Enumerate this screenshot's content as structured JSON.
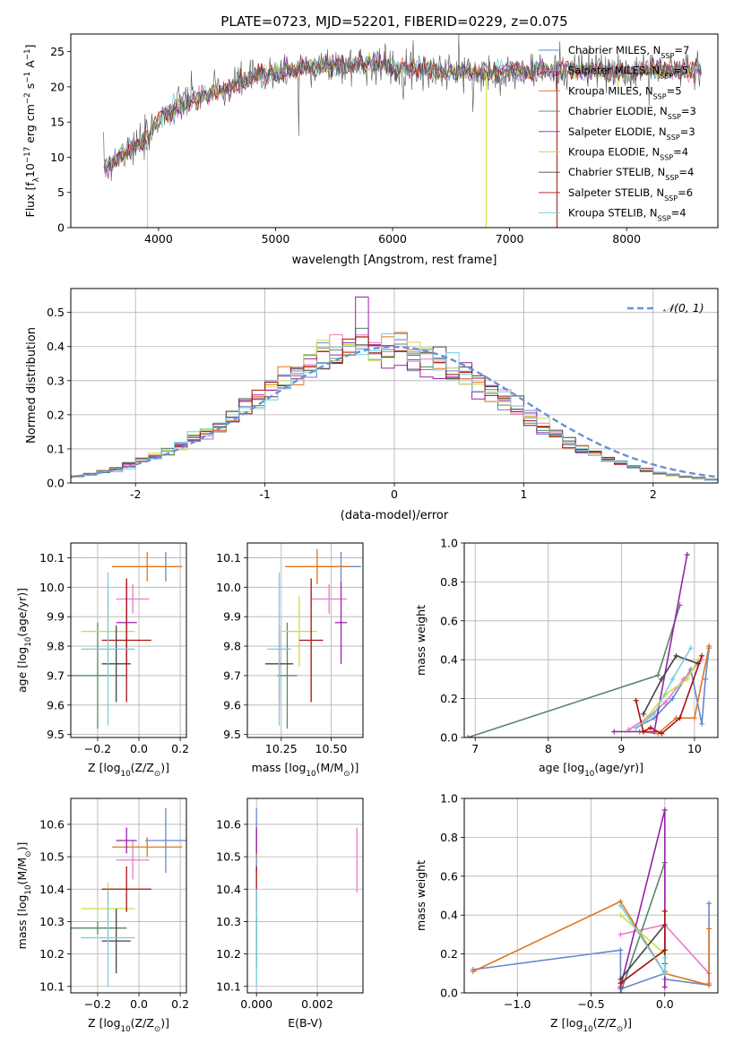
{
  "title": "PLATE=0723, MJD=52201, FIBERID=0229, z=0.075",
  "colors": {
    "chabrier_miles": "#6688cc",
    "salpeter_miles": "#ee77cc",
    "kroupa_miles": "#dd7722",
    "chabrier_elodie": "#558866",
    "salpeter_elodie": "#9922aa",
    "kroupa_elodie": "#ccdd44",
    "chabrier_stelib": "#444444",
    "salpeter_stelib": "#aa1111",
    "kroupa_stelib": "#77ccdd",
    "normal": "#6a92d6"
  },
  "chart_data": [
    {
      "type": "line",
      "id": "spectrum",
      "xlabel": "wavelength [Angstrom, rest frame]",
      "ylabel_main": "Flux [f",
      "ylabel_sub": "λ",
      "ylabel_rest": "10",
      "ylabel_exp": "−17",
      "ylabel_tail1": " erg cm",
      "ylabel_exp2": "−2",
      "ylabel_tail2": " s",
      "ylabel_exp3": "−1",
      "ylabel_tail3": " A",
      "ylabel_exp4": "−1",
      "ylabel_close": "]",
      "xlim": [
        3250,
        8780
      ],
      "ylim": [
        0,
        27.5
      ],
      "xticks": [
        4000,
        5000,
        6000,
        7000,
        8000
      ],
      "yticks": [
        0,
        5,
        10,
        15,
        20,
        25
      ],
      "legend_position": "upper-right",
      "legend": [
        {
          "name": "Chabrier MILES, N",
          "sub": "SSP",
          "eq": "=7",
          "color": "#6688cc"
        },
        {
          "name": "Salpeter MILES, N",
          "sub": "SSP",
          "eq": "=5",
          "color": "#ee77cc"
        },
        {
          "name": "Kroupa MILES, N",
          "sub": "SSP",
          "eq": "=5",
          "color": "#dd7722"
        },
        {
          "name": "Chabrier ELODIE, N",
          "sub": "SSP",
          "eq": "=3",
          "color": "#558866"
        },
        {
          "name": "Salpeter ELODIE, N",
          "sub": "SSP",
          "eq": "=3",
          "color": "#9922aa"
        },
        {
          "name": "Kroupa ELODIE, N",
          "sub": "SSP",
          "eq": "=4",
          "color": "#ccdd44"
        },
        {
          "name": "Chabrier STELIB, N",
          "sub": "SSP",
          "eq": "=4",
          "color": "#444444"
        },
        {
          "name": "Salpeter STELIB, N",
          "sub": "SSP",
          "eq": "=6",
          "color": "#aa1111"
        },
        {
          "name": "Kroupa STELIB, N",
          "sub": "SSP",
          "eq": "=4",
          "color": "#77ccdd"
        }
      ],
      "continuum": {
        "x": [
          3530,
          3700,
          3900,
          4000,
          4200,
          4400,
          4600,
          4800,
          5000,
          5200,
          5400,
          5600,
          5800,
          6000,
          6200,
          6400,
          6600,
          6800,
          7000,
          7200,
          7400,
          7600,
          7800,
          8000,
          8200,
          8400,
          8600
        ],
        "y": [
          8.5,
          10.5,
          12.5,
          15.5,
          17.5,
          18.8,
          20.0,
          21.3,
          22.0,
          22.6,
          23.0,
          23.0,
          23.4,
          22.8,
          22.6,
          22.4,
          22.0,
          22.0,
          22.2,
          22.1,
          22.3,
          22.5,
          22.2,
          22.0,
          22.6,
          22.3,
          22.5
        ]
      }
    },
    {
      "type": "histogram",
      "id": "residuals",
      "xlabel": "(data-model)/error",
      "ylabel": "Normed distribution",
      "xlim": [
        -2.5,
        2.5
      ],
      "ylim": [
        0,
        0.57
      ],
      "xticks": [
        -2,
        -1,
        0,
        1,
        2
      ],
      "yticks": [
        0,
        0.1,
        0.2,
        0.3,
        0.4,
        0.5
      ],
      "bin_width": 0.1,
      "legend_label": "𝒩(0, 1)",
      "legend_position": "upper-right"
    },
    {
      "type": "errorbar",
      "id": "age-vs-z",
      "xlabel": "Z [log",
      "xlabel_sub": "10",
      "xlabel_mid": "(Z/Z",
      "xlabel_sub2": "⊙",
      "xlabel_end": ")]",
      "ylabel": "age  [log",
      "ylabel_sub": "10",
      "ylabel_end": "(age/yr)]",
      "xlim": [
        -0.33,
        0.23
      ],
      "ylim": [
        9.49,
        10.15
      ],
      "xticks": [
        -0.2,
        0.0,
        0.2
      ],
      "xticklabels": [
        "−0.2",
        "0.0",
        "0.2"
      ],
      "yticks": [
        9.5,
        9.6,
        9.7,
        9.8,
        9.9,
        10.0,
        10.1
      ],
      "points": [
        {
          "color": "#6688cc",
          "x": 0.13,
          "xerr": 0.0,
          "y": 10.07,
          "yerr": 0.05
        },
        {
          "color": "#ee77cc",
          "x": -0.03,
          "xerr": 0.08,
          "y": 9.96,
          "yerr": 0.05
        },
        {
          "color": "#dd7722",
          "x": 0.04,
          "xerr": 0.17,
          "y": 10.07,
          "yerr": 0.05
        },
        {
          "color": "#558866",
          "x": -0.2,
          "xerr": 0.14,
          "y": 9.7,
          "yerr": 0.18
        },
        {
          "color": "#9922aa",
          "x": -0.06,
          "xerr": 0.05,
          "y": 9.88,
          "yerr": 0.14
        },
        {
          "color": "#ccdd44",
          "x": -0.15,
          "xerr": 0.13,
          "y": 9.85,
          "yerr": 0.12
        },
        {
          "color": "#444444",
          "x": -0.11,
          "xerr": 0.07,
          "y": 9.74,
          "yerr": 0.13
        },
        {
          "color": "#aa1111",
          "x": -0.06,
          "xerr": 0.12,
          "y": 9.82,
          "yerr": 0.21
        },
        {
          "color": "#77ccdd",
          "x": -0.15,
          "xerr": 0.13,
          "y": 9.79,
          "yerr": 0.26
        }
      ]
    },
    {
      "type": "errorbar",
      "id": "age-vs-mass",
      "xlabel": "mass [log",
      "xlabel_sub": "10",
      "xlabel_mid": "(M/M",
      "xlabel_sub2": "⊙",
      "xlabel_end": ")]",
      "xlim": [
        10.08,
        10.66
      ],
      "ylim": [
        9.49,
        10.15
      ],
      "xticks": [
        10.25,
        10.5
      ],
      "xticklabels": [
        "10.25",
        "10.50"
      ],
      "yticks": [
        9.5,
        9.6,
        9.7,
        9.8,
        9.9,
        10.0,
        10.1
      ],
      "points": [
        {
          "color": "#6688cc",
          "x": 10.55,
          "xerr": 0.1,
          "y": 10.07,
          "yerr": 0.05
        },
        {
          "color": "#ee77cc",
          "x": 10.49,
          "xerr": 0.09,
          "y": 9.96,
          "yerr": 0.05
        },
        {
          "color": "#dd7722",
          "x": 10.43,
          "xerr": 0.16,
          "y": 10.07,
          "yerr": 0.06
        },
        {
          "color": "#558866",
          "x": 10.28,
          "xerr": 0.05,
          "y": 9.7,
          "yerr": 0.18
        },
        {
          "color": "#9922aa",
          "x": 10.55,
          "xerr": 0.03,
          "y": 9.88,
          "yerr": 0.14
        },
        {
          "color": "#ccdd44",
          "x": 10.34,
          "xerr": 0.09,
          "y": 9.85,
          "yerr": 0.12
        },
        {
          "color": "#444444",
          "x": 10.24,
          "xerr": 0.07,
          "y": 9.74,
          "yerr": 0.13
        },
        {
          "color": "#aa1111",
          "x": 10.4,
          "xerr": 0.06,
          "y": 9.82,
          "yerr": 0.21
        },
        {
          "color": "#77ccdd",
          "x": 10.24,
          "xerr": 0.06,
          "y": 9.79,
          "yerr": 0.26
        }
      ]
    },
    {
      "type": "line",
      "id": "weight-vs-age",
      "xlabel": "age  [log",
      "xlabel_sub": "10",
      "xlabel_end": "(age/yr)]",
      "ylabel": "mass weight",
      "xlim": [
        6.85,
        10.32
      ],
      "ylim": [
        0,
        1.0
      ],
      "xticks": [
        7,
        8,
        9,
        10
      ],
      "yticks": [
        0,
        0.2,
        0.4,
        0.6,
        0.8,
        1.0
      ],
      "yticklabels": [
        "0.0",
        "0.2",
        "0.4",
        "0.6",
        "0.8",
        "1.0"
      ],
      "series": [
        {
          "color": "#6688cc",
          "x": [
            9.2,
            9.45,
            9.7,
            9.95,
            10.1,
            10.15,
            10.2
          ],
          "y": [
            0.05,
            0.1,
            0.2,
            0.35,
            0.07,
            0.3,
            0.46
          ]
        },
        {
          "color": "#ee77cc",
          "x": [
            9.1,
            9.35,
            9.6,
            9.85,
            10.1
          ],
          "y": [
            0.04,
            0.1,
            0.18,
            0.3,
            0.4
          ]
        },
        {
          "color": "#dd7722",
          "x": [
            9.25,
            9.5,
            9.75,
            10.0,
            10.2
          ],
          "y": [
            0.03,
            0.02,
            0.1,
            0.1,
            0.47
          ]
        },
        {
          "color": "#558866",
          "x": [
            6.9,
            9.5,
            9.8
          ],
          "y": [
            0.0,
            0.32,
            0.68
          ]
        },
        {
          "color": "#9922aa",
          "x": [
            8.9,
            9.45,
            9.9
          ],
          "y": [
            0.03,
            0.03,
            0.94
          ]
        },
        {
          "color": "#ccdd44",
          "x": [
            9.3,
            9.6,
            9.9,
            10.05
          ],
          "y": [
            0.08,
            0.22,
            0.3,
            0.4
          ]
        },
        {
          "color": "#444444",
          "x": [
            9.3,
            9.55,
            9.75,
            10.05
          ],
          "y": [
            0.12,
            0.3,
            0.42,
            0.38
          ]
        },
        {
          "color": "#aa1111",
          "x": [
            9.2,
            9.3,
            9.4,
            9.55,
            9.8,
            10.1
          ],
          "y": [
            0.19,
            0.03,
            0.05,
            0.02,
            0.1,
            0.42
          ]
        },
        {
          "color": "#77ccdd",
          "x": [
            9.2,
            9.45,
            9.7,
            9.95
          ],
          "y": [
            0.05,
            0.12,
            0.3,
            0.46
          ]
        }
      ]
    },
    {
      "type": "errorbar",
      "id": "mass-vs-z",
      "xlabel": "Z [log",
      "xlabel_sub": "10",
      "xlabel_mid": "(Z/Z",
      "xlabel_sub2": "⊙",
      "xlabel_end": ")]",
      "ylabel": "mass [log",
      "ylabel_sub": "10",
      "ylabel_mid": "(M/M",
      "ylabel_sub2": "⊙",
      "ylabel_end": ")]",
      "xlim": [
        -0.33,
        0.23
      ],
      "ylim": [
        10.08,
        10.68
      ],
      "xticks": [
        -0.2,
        0.0,
        0.2
      ],
      "xticklabels": [
        "−0.2",
        "0.0",
        "0.2"
      ],
      "yticks": [
        10.1,
        10.2,
        10.3,
        10.4,
        10.5,
        10.6
      ],
      "points": [
        {
          "color": "#6688cc",
          "x": 0.13,
          "xerr": 0.1,
          "y": 10.55,
          "yerr": 0.1
        },
        {
          "color": "#ee77cc",
          "x": -0.03,
          "xerr": 0.08,
          "y": 10.49,
          "yerr": 0.06
        },
        {
          "color": "#dd7722",
          "x": 0.04,
          "xerr": 0.17,
          "y": 10.53,
          "yerr": 0.03
        },
        {
          "color": "#558866",
          "x": -0.2,
          "xerr": 0.14,
          "y": 10.28,
          "yerr": 0.02
        },
        {
          "color": "#9922aa",
          "x": -0.06,
          "xerr": 0.05,
          "y": 10.55,
          "yerr": 0.04
        },
        {
          "color": "#ccdd44",
          "x": -0.15,
          "xerr": 0.13,
          "y": 10.34,
          "yerr": 0.08
        },
        {
          "color": "#444444",
          "x": -0.11,
          "xerr": 0.07,
          "y": 10.24,
          "yerr": 0.1
        },
        {
          "color": "#aa1111",
          "x": -0.06,
          "xerr": 0.12,
          "y": 10.4,
          "yerr": 0.07
        },
        {
          "color": "#77ccdd",
          "x": -0.15,
          "xerr": 0.13,
          "y": 10.25,
          "yerr": 0.15
        }
      ]
    },
    {
      "type": "errorbar",
      "id": "mass-vs-ebv",
      "xlabel": "E(B-V)",
      "xlim": [
        -0.0003,
        0.0035
      ],
      "ylim": [
        10.08,
        10.68
      ],
      "xticks": [
        0.0,
        0.002
      ],
      "xticklabels": [
        "0.000",
        "0.002"
      ],
      "yticks": [
        10.1,
        10.2,
        10.3,
        10.4,
        10.5,
        10.6
      ],
      "points": [
        {
          "color": "#6688cc",
          "x": 0.0,
          "y": 10.55,
          "yerr": 0.1
        },
        {
          "color": "#ee77cc",
          "x": 0.0033,
          "y": 10.49,
          "yerr": 0.1
        },
        {
          "color": "#dd7722",
          "x": 0.0,
          "y": 10.53,
          "yerr": 0.03
        },
        {
          "color": "#558866",
          "x": 0.0,
          "y": 10.28,
          "yerr": 0.05
        },
        {
          "color": "#9922aa",
          "x": 0.0,
          "y": 10.55,
          "yerr": 0.04
        },
        {
          "color": "#ccdd44",
          "x": 0.0,
          "y": 10.34,
          "yerr": 0.05
        },
        {
          "color": "#444444",
          "x": 0.0,
          "y": 10.24,
          "yerr": 0.08
        },
        {
          "color": "#aa1111",
          "x": 0.0,
          "y": 10.4,
          "yerr": 0.07
        },
        {
          "color": "#77ccdd",
          "x": 0.0,
          "y": 10.25,
          "yerr": 0.15
        }
      ]
    },
    {
      "type": "line",
      "id": "weight-vs-z",
      "xlabel": "Z [log",
      "xlabel_sub": "10",
      "xlabel_mid": "(Z/Z",
      "xlabel_sub2": "⊙",
      "xlabel_end": ")]",
      "ylabel": "mass weight",
      "xlim": [
        -1.36,
        0.36
      ],
      "ylim": [
        0,
        1.0
      ],
      "xticks": [
        -1.0,
        -0.5,
        0.0
      ],
      "xticklabels": [
        "−1.0",
        "−0.5",
        "0.0"
      ],
      "yticks": [
        0,
        0.2,
        0.4,
        0.6,
        0.8,
        1.0
      ],
      "yticklabels": [
        "0.0",
        "0.2",
        "0.4",
        "0.6",
        "0.8",
        "1.0"
      ],
      "series": [
        {
          "color": "#6688cc",
          "x": [
            -1.3,
            -0.3,
            -0.3,
            0.0,
            0.0,
            0.3,
            0.3
          ],
          "y": [
            0.12,
            0.22,
            0.02,
            0.1,
            0.07,
            0.04,
            0.46
          ]
        },
        {
          "color": "#ee77cc",
          "x": [
            -0.3,
            0.0,
            0.3,
            0.3
          ],
          "y": [
            0.3,
            0.35,
            0.1,
            0.05
          ]
        },
        {
          "color": "#dd7722",
          "x": [
            -1.3,
            -0.3,
            0.0,
            0.3,
            0.3
          ],
          "y": [
            0.11,
            0.47,
            0.1,
            0.04,
            0.33
          ]
        },
        {
          "color": "#558866",
          "x": [
            -0.3,
            0.0,
            0.0
          ],
          "y": [
            0.0,
            0.67,
            0.11
          ]
        },
        {
          "color": "#9922aa",
          "x": [
            -0.3,
            0.0,
            0.0
          ],
          "y": [
            0.03,
            0.94,
            0.03
          ]
        },
        {
          "color": "#ccdd44",
          "x": [
            -0.3,
            0.0,
            0.0
          ],
          "y": [
            0.4,
            0.2,
            0.1
          ]
        },
        {
          "color": "#444444",
          "x": [
            -0.3,
            0.0,
            0.0
          ],
          "y": [
            0.07,
            0.35,
            0.15
          ]
        },
        {
          "color": "#aa1111",
          "x": [
            -0.3,
            0.0,
            0.0
          ],
          "y": [
            0.05,
            0.22,
            0.42
          ]
        },
        {
          "color": "#77ccdd",
          "x": [
            -0.3,
            0.0,
            0.0
          ],
          "y": [
            0.45,
            0.1,
            0.18
          ]
        }
      ]
    }
  ]
}
